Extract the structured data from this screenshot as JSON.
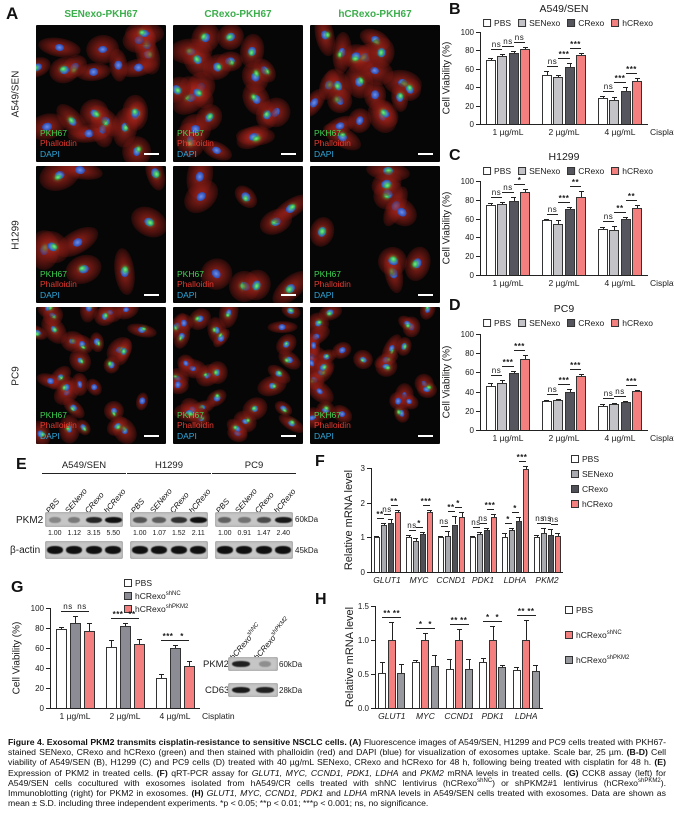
{
  "panel_letters": {
    "A": "A",
    "B": "B",
    "C": "C",
    "D": "D",
    "E": "E",
    "F": "F",
    "G": "G",
    "H": "H"
  },
  "colors": {
    "pbs": "#ffffff",
    "senexo": "#c4c4c8",
    "crexo": "#55555d",
    "hcrexo": "#f3807e",
    "shnc_gray": "#8c8c95",
    "shpkm2_gray": "#98989f",
    "header_green": "#3cae4c",
    "pkh67_green": "#3ed152",
    "phalloidin_red": "#e8392f",
    "dapi_blue": "#2fa8dd"
  },
  "panel_a": {
    "col_headers": [
      "SENexo-PKH67",
      "CRexo-PKH67",
      "hCRexo-PKH67"
    ],
    "row_labels": [
      "A549/SEN",
      "H1299",
      "PC9"
    ],
    "stain_labels": [
      "PKH67",
      "Phalloidin",
      "DAPI"
    ]
  },
  "panel_e": {
    "groups": [
      "A549/SEN",
      "H1299",
      "PC9"
    ],
    "lanes": [
      "PBS",
      "SENexo",
      "CRexo",
      "hCRexo"
    ],
    "row_labels": [
      "PKM2",
      "β-actin"
    ],
    "kda_labels": [
      "60kDa",
      "45kDa"
    ],
    "pkm2_values": [
      [
        "1.00",
        "1.12",
        "3.15",
        "5.50"
      ],
      [
        "1.00",
        "1.07",
        "1.52",
        "2.11"
      ],
      [
        "1.00",
        "0.91",
        "1.47",
        "2.40"
      ]
    ],
    "pkm2_intensity": [
      [
        0.35,
        0.42,
        0.88,
        1.0
      ],
      [
        0.62,
        0.58,
        0.82,
        1.0
      ],
      [
        0.55,
        0.45,
        0.68,
        0.95
      ]
    ],
    "actin_intensity": [
      [
        1,
        1,
        1,
        1
      ],
      [
        1,
        1,
        1,
        1
      ],
      [
        1,
        1,
        1,
        1
      ]
    ]
  },
  "panel_g_blot": {
    "lanes": [
      {
        "base": "hCRexo",
        "sup": "shNC"
      },
      {
        "base": "hCRexo",
        "sup": "shPKM2"
      }
    ],
    "row_labels": [
      "PKM2",
      "CD63"
    ],
    "kda_labels": [
      "60kDa",
      "28kDa"
    ],
    "intensity": [
      [
        0.9,
        0.3
      ],
      [
        0.95,
        0.9
      ]
    ]
  },
  "chart_data": [
    {
      "id": "B",
      "type": "bar",
      "title": "A549/SEN",
      "ylabel": "Cell Viability (%)",
      "ylim": [
        0,
        100
      ],
      "yticks": [
        0,
        20,
        40,
        60,
        80,
        100
      ],
      "categories": [
        "1 µg/mL",
        "2 µg/mL",
        "4 µg/mL"
      ],
      "x_suffix": "Cisplatin",
      "legend_position": "top",
      "series": [
        {
          "name": "PBS",
          "color": "#ffffff",
          "values": [
            70,
            53,
            28
          ],
          "errors": [
            2,
            5,
            2
          ]
        },
        {
          "name": "SENexo",
          "color": "#c4c4c8",
          "values": [
            74,
            51,
            26
          ],
          "errors": [
            2,
            2,
            3
          ]
        },
        {
          "name": "CRexo",
          "color": "#55555d",
          "values": [
            77,
            62,
            36
          ],
          "errors": [
            2,
            4,
            4
          ]
        },
        {
          "name": "hCRexo",
          "color": "#f3807e",
          "values": [
            81,
            75,
            47
          ],
          "errors": [
            3,
            2,
            3
          ]
        }
      ],
      "sig": [
        [
          "ns",
          "ns",
          "ns"
        ],
        [
          "ns",
          "***",
          "***"
        ],
        [
          "ns",
          "***",
          "***"
        ]
      ]
    },
    {
      "id": "C",
      "type": "bar",
      "title": "H1299",
      "ylabel": "Cell Viability (%)",
      "ylim": [
        0,
        100
      ],
      "yticks": [
        0,
        20,
        40,
        60,
        80,
        100
      ],
      "categories": [
        "1 µg/mL",
        "2 µg/mL",
        "4 µg/mL"
      ],
      "x_suffix": "Cisplatin",
      "legend_position": "top",
      "series": [
        {
          "name": "PBS",
          "color": "#ffffff",
          "values": [
            74,
            58,
            49
          ],
          "errors": [
            3,
            2,
            2
          ]
        },
        {
          "name": "SENexo",
          "color": "#c4c4c8",
          "values": [
            76,
            54,
            48
          ],
          "errors": [
            2,
            4,
            4
          ]
        },
        {
          "name": "CRexo",
          "color": "#55555d",
          "values": [
            79,
            70,
            60
          ],
          "errors": [
            4,
            2,
            2
          ]
        },
        {
          "name": "hCRexo",
          "color": "#f3807e",
          "values": [
            88,
            83,
            71
          ],
          "errors": [
            3,
            6,
            3
          ]
        }
      ],
      "sig": [
        [
          "ns",
          "ns",
          "*"
        ],
        [
          "ns",
          "***",
          "**"
        ],
        [
          "ns",
          "**",
          "**"
        ]
      ]
    },
    {
      "id": "D",
      "type": "bar",
      "title": "PC9",
      "ylabel": "Cell Viability (%)",
      "ylim": [
        0,
        100
      ],
      "yticks": [
        0,
        20,
        40,
        60,
        80,
        100
      ],
      "categories": [
        "1 µg/mL",
        "2 µg/mL",
        "4 µg/mL"
      ],
      "x_suffix": "Cisplatin",
      "legend_position": "top",
      "series": [
        {
          "name": "PBS",
          "color": "#ffffff",
          "values": [
            46,
            30,
            25
          ],
          "errors": [
            3,
            1,
            2
          ]
        },
        {
          "name": "SENexo",
          "color": "#c4c4c8",
          "values": [
            49,
            31,
            27
          ],
          "errors": [
            3,
            1,
            1
          ]
        },
        {
          "name": "CRexo",
          "color": "#55555d",
          "values": [
            59,
            40,
            29
          ],
          "errors": [
            2,
            3,
            1
          ]
        },
        {
          "name": "hCRexo",
          "color": "#f3807e",
          "values": [
            74,
            56,
            41
          ],
          "errors": [
            4,
            2,
            1
          ]
        }
      ],
      "sig": [
        [
          "ns",
          "***",
          "***"
        ],
        [
          "ns",
          "***",
          "***"
        ],
        [
          "ns",
          "ns",
          "***"
        ]
      ]
    },
    {
      "id": "F",
      "type": "bar",
      "title": "",
      "ylabel": "Relative mRNA level",
      "ylim": [
        0,
        3
      ],
      "yticks": [
        0,
        1,
        2,
        3
      ],
      "italic_categories": true,
      "categories": [
        "GLUT1",
        "MYC",
        "CCND1",
        "PDK1",
        "LDHA",
        "PKM2"
      ],
      "x_suffix": "",
      "legend_position": "right",
      "series": [
        {
          "name": "PBS",
          "color": "#ffffff",
          "values": [
            1.0,
            1.0,
            1.0,
            1.0,
            1.0,
            1.0
          ],
          "errors": [
            0.05,
            0.07,
            0.04,
            0.05,
            0.12,
            0.06
          ]
        },
        {
          "name": "SENexo",
          "color": "#a9a9b0",
          "values": [
            1.35,
            0.88,
            1.05,
            1.1,
            1.22,
            1.13
          ],
          "errors": [
            0.05,
            0.1,
            0.12,
            0.06,
            0.05,
            0.15
          ]
        },
        {
          "name": "CRexo",
          "color": "#4f4f57",
          "values": [
            1.42,
            1.1,
            1.37,
            1.22,
            1.48,
            1.08
          ],
          "errors": [
            0.1,
            0.05,
            0.25,
            0.06,
            0.1,
            0.15
          ]
        },
        {
          "name": "hCRexo",
          "color": "#f3807e",
          "values": [
            1.72,
            1.72,
            1.6,
            1.6,
            2.97,
            1.04
          ],
          "errors": [
            0.08,
            0.08,
            0.12,
            0.08,
            0.1,
            0.08
          ]
        }
      ],
      "sig": [
        [
          "**",
          "ns",
          "**"
        ],
        [
          "ns",
          "*",
          "***"
        ],
        [
          "ns",
          "**",
          "*"
        ],
        [
          "ns",
          "ns",
          "***"
        ],
        [
          "*",
          "*",
          "***"
        ],
        [
          "ns",
          "ns",
          "ns"
        ]
      ]
    },
    {
      "id": "G",
      "type": "bar",
      "title": "",
      "ylabel": "Cell Viability (%)",
      "ylim": [
        0,
        100
      ],
      "yticks": [
        0,
        20,
        40,
        60,
        80,
        100
      ],
      "categories": [
        "1 µg/mL",
        "2 µg/mL",
        "4 µg/mL"
      ],
      "x_suffix": "Cisplatin",
      "legend_position": "top-col",
      "series": [
        {
          "name": "PBS",
          "color": "#ffffff",
          "values": [
            79,
            61,
            30
          ],
          "errors": [
            2,
            7,
            4
          ]
        },
        {
          "name": "hCRexo",
          "sup": "shNC",
          "color": "#8c8c95",
          "values": [
            85,
            82,
            60
          ],
          "errors": [
            7,
            3,
            3
          ]
        },
        {
          "name": "hCRexo",
          "sup": "shPKM2",
          "color": "#f3807e",
          "values": [
            77,
            64,
            42
          ],
          "errors": [
            8,
            5,
            5
          ]
        }
      ],
      "sig": [
        [
          "ns",
          "ns"
        ],
        [
          "***",
          "**"
        ],
        [
          "***",
          "*"
        ]
      ]
    },
    {
      "id": "H",
      "type": "bar",
      "title": "",
      "ylabel": "Relative mRNA level",
      "ylim": [
        0,
        1.5
      ],
      "yticks": [
        "0.0",
        "0.5",
        "1.0",
        "1.5"
      ],
      "italic_categories": true,
      "categories": [
        "GLUT1",
        "MYC",
        "CCND1",
        "PDK1",
        "LDHA"
      ],
      "x_suffix": "",
      "legend_position": "right",
      "series": [
        {
          "name": "PBS",
          "color": "#ffffff",
          "values": [
            0.52,
            0.67,
            0.58,
            0.68,
            0.56
          ],
          "errors": [
            0.15,
            0.04,
            0.14,
            0.05,
            0.05
          ]
        },
        {
          "name": "hCRexo",
          "sup": "shNC",
          "color": "#f3807e",
          "values": [
            1.0,
            1.0,
            1.0,
            1.0,
            1.0
          ],
          "errors": [
            0.27,
            0.1,
            0.16,
            0.2,
            0.3
          ]
        },
        {
          "name": "hCRexo",
          "sup": "shPKM2",
          "color": "#98989f",
          "values": [
            0.51,
            0.62,
            0.57,
            0.61,
            0.54
          ],
          "errors": [
            0.13,
            0.16,
            0.15,
            0.02,
            0.09
          ]
        }
      ],
      "sig": [
        [
          "**",
          "**"
        ],
        [
          "*",
          "*"
        ],
        [
          "**",
          "**"
        ],
        [
          "*",
          "*"
        ],
        [
          "**",
          "**"
        ]
      ]
    }
  ],
  "caption_runs": [
    {
      "t": "Figure 4. Exosomal PKM2 transmits cisplatin-resistance to sensitive NSCLC cells. ",
      "b": true
    },
    {
      "t": "(A) ",
      "b": true
    },
    {
      "t": "Fluorescence images of A549/SEN, H1299 and PC9 cells treated with PKH67-stained SENexo, CRexo and hCRexo (green) and then stained with phalloidin (red) and DAPI (blue) for visualization of exosomes uptake. Scale bar, 25 µm. "
    },
    {
      "t": "(B-D) ",
      "b": true
    },
    {
      "t": "Cell viability of A549/SEN (B), H1299 (C) and PC9 cells (D) treated with 40 µg/mL SENexo, CRexo and hCRexo for 48 h, following being treated with cisplatin for 48 h. "
    },
    {
      "t": "(E) ",
      "b": true
    },
    {
      "t": "Expression of PKM2 in treated cells. "
    },
    {
      "t": "(F) ",
      "b": true
    },
    {
      "t": "qRT-PCR assay for "
    },
    {
      "t": "GLUT1, MYC, CCND1, PDK1, LDHA",
      "i": true
    },
    {
      "t": " and "
    },
    {
      "t": "PKM2",
      "i": true
    },
    {
      "t": " mRNA levels in treated cells. "
    },
    {
      "t": "(G) ",
      "b": true
    },
    {
      "t": "CCK8 assay (left) for A549/SEN cells cocultured with exosomes isolated from hA549/CR cells treated with shNC lentivirus (hCRexo"
    },
    {
      "t": "shNC",
      "sup": true
    },
    {
      "t": ") or shPKM2#1 lentivirus (hCRexo"
    },
    {
      "t": "shPKM2",
      "sup": true
    },
    {
      "t": "). Immunoblotting (right) for PKM2 in exosomes. "
    },
    {
      "t": "(H) ",
      "b": true
    },
    {
      "t": "GLUT1, MYC, CCND1, PDK1",
      "i": true
    },
    {
      "t": " and "
    },
    {
      "t": "LDHA",
      "i": true
    },
    {
      "t": " mRNA levels in A549/SEN cells treated with exosomes. Data are shown as mean ± S.D. including three independent experiments. *p < 0.05; **p < 0.01; ***p < 0.001; ns, no significance."
    }
  ]
}
